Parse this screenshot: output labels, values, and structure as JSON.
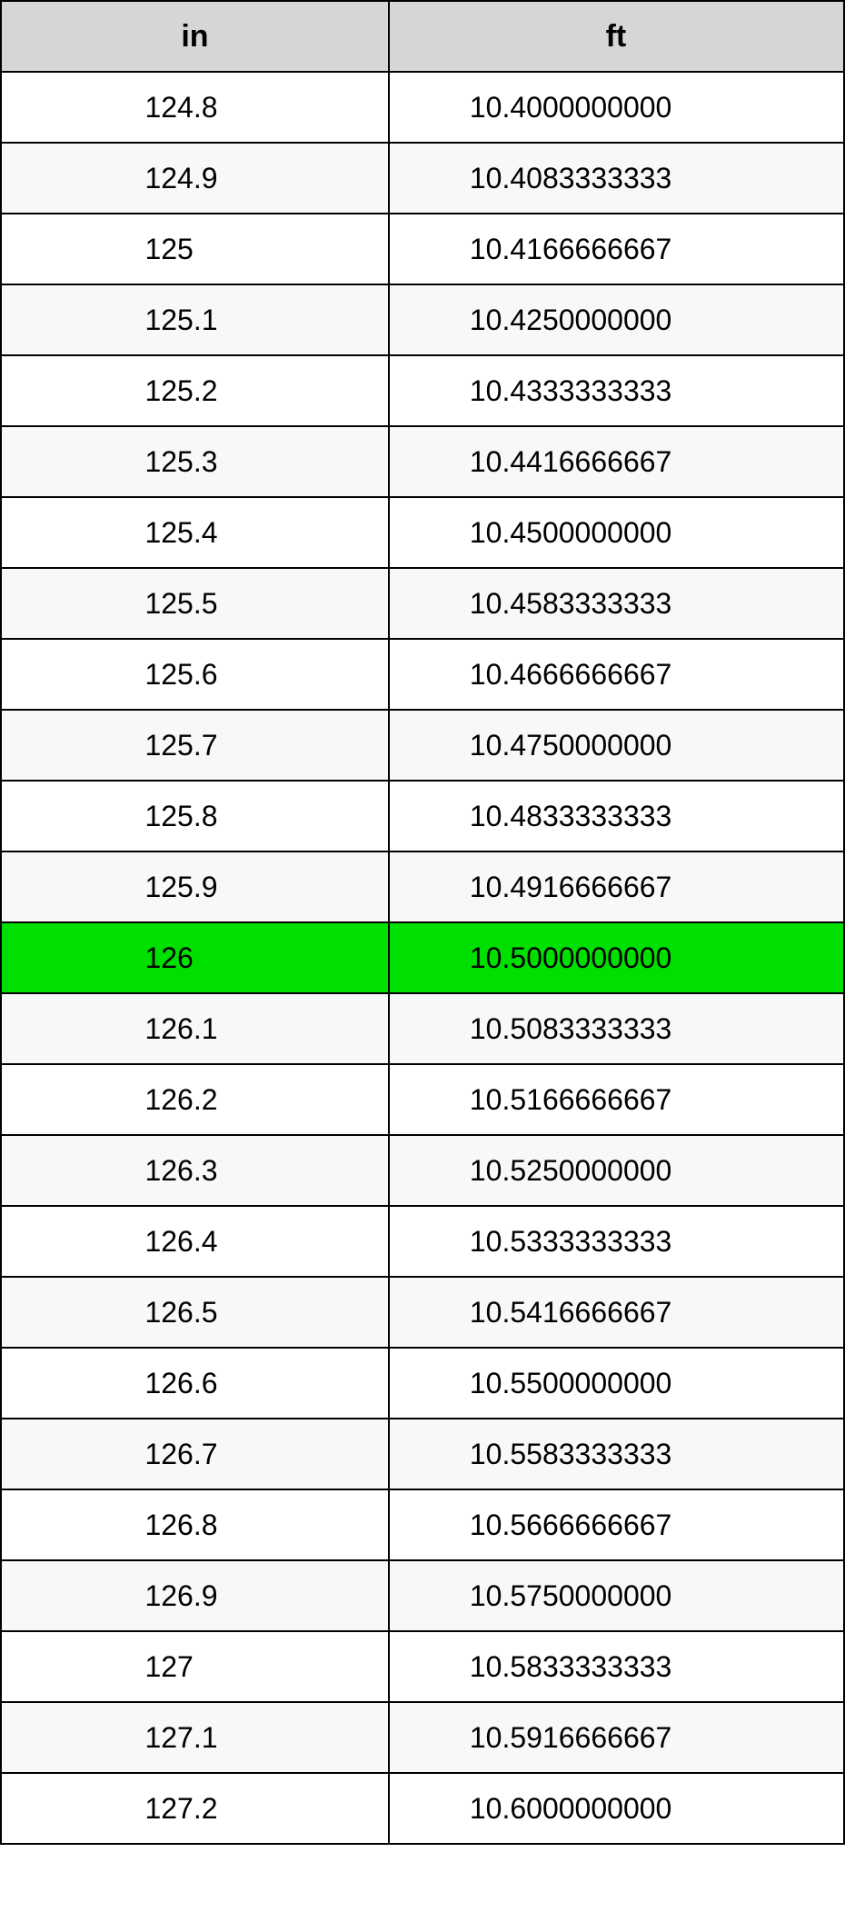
{
  "table": {
    "type": "table",
    "header_background": "#d6d6d6",
    "row_background_odd": "#ffffff",
    "row_background_even": "#f8f8f8",
    "highlight_background": "#00e000",
    "border_color": "#000000",
    "text_color": "#000000",
    "header_fontsize": 34,
    "cell_fontsize": 32,
    "columns": [
      {
        "key": "in",
        "label": "in",
        "width_pct": 46,
        "align": "center"
      },
      {
        "key": "ft",
        "label": "ft",
        "width_pct": 54,
        "align": "left"
      }
    ],
    "rows": [
      {
        "in": "124.8",
        "ft": "10.4000000000",
        "highlight": false
      },
      {
        "in": "124.9",
        "ft": "10.4083333333",
        "highlight": false
      },
      {
        "in": "125",
        "ft": "10.4166666667",
        "highlight": false
      },
      {
        "in": "125.1",
        "ft": "10.4250000000",
        "highlight": false
      },
      {
        "in": "125.2",
        "ft": "10.4333333333",
        "highlight": false
      },
      {
        "in": "125.3",
        "ft": "10.4416666667",
        "highlight": false
      },
      {
        "in": "125.4",
        "ft": "10.4500000000",
        "highlight": false
      },
      {
        "in": "125.5",
        "ft": "10.4583333333",
        "highlight": false
      },
      {
        "in": "125.6",
        "ft": "10.4666666667",
        "highlight": false
      },
      {
        "in": "125.7",
        "ft": "10.4750000000",
        "highlight": false
      },
      {
        "in": "125.8",
        "ft": "10.4833333333",
        "highlight": false
      },
      {
        "in": "125.9",
        "ft": "10.4916666667",
        "highlight": false
      },
      {
        "in": "126",
        "ft": "10.5000000000",
        "highlight": true
      },
      {
        "in": "126.1",
        "ft": "10.5083333333",
        "highlight": false
      },
      {
        "in": "126.2",
        "ft": "10.5166666667",
        "highlight": false
      },
      {
        "in": "126.3",
        "ft": "10.5250000000",
        "highlight": false
      },
      {
        "in": "126.4",
        "ft": "10.5333333333",
        "highlight": false
      },
      {
        "in": "126.5",
        "ft": "10.5416666667",
        "highlight": false
      },
      {
        "in": "126.6",
        "ft": "10.5500000000",
        "highlight": false
      },
      {
        "in": "126.7",
        "ft": "10.5583333333",
        "highlight": false
      },
      {
        "in": "126.8",
        "ft": "10.5666666667",
        "highlight": false
      },
      {
        "in": "126.9",
        "ft": "10.5750000000",
        "highlight": false
      },
      {
        "in": "127",
        "ft": "10.5833333333",
        "highlight": false
      },
      {
        "in": "127.1",
        "ft": "10.5916666667",
        "highlight": false
      },
      {
        "in": "127.2",
        "ft": "10.6000000000",
        "highlight": false
      }
    ]
  }
}
